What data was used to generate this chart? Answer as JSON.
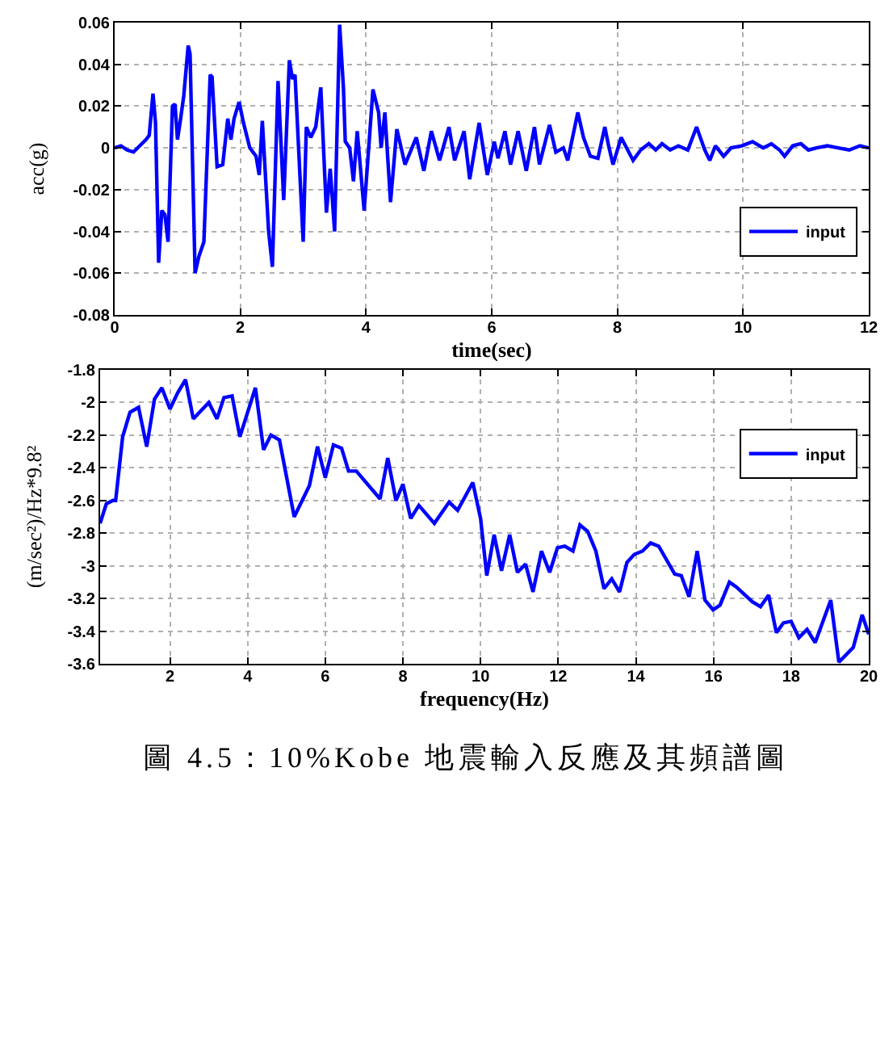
{
  "chart_data": [
    {
      "type": "line",
      "xlabel": "time(sec)",
      "ylabel": "acc(g)",
      "xlim": [
        0,
        12
      ],
      "xticks": [
        0,
        2,
        4,
        6,
        8,
        10,
        12
      ],
      "ylim": [
        -0.08,
        0.06
      ],
      "yticks": [
        -0.08,
        -0.06,
        -0.04,
        -0.02,
        0,
        0.02,
        0.04,
        0.06
      ],
      "grid": true,
      "legend": "bottom right",
      "x": [
        0,
        0.1,
        0.2,
        0.3,
        0.4,
        0.5,
        0.55,
        0.61,
        0.65,
        0.7,
        0.75,
        0.8,
        0.85,
        0.92,
        0.96,
        1.0,
        1.05,
        1.1,
        1.17,
        1.2,
        1.28,
        1.34,
        1.42,
        1.52,
        1.55,
        1.63,
        1.72,
        1.8,
        1.85,
        1.9,
        1.98,
        2.05,
        2.15,
        2.25,
        2.3,
        2.35,
        2.45,
        2.51,
        2.6,
        2.69,
        2.78,
        2.83,
        2.87,
        3.0,
        3.05,
        3.12,
        3.2,
        3.28,
        3.37,
        3.43,
        3.5,
        3.58,
        3.64,
        3.67,
        3.74,
        3.8,
        3.86,
        3.97,
        4.11,
        4.2,
        4.24,
        4.3,
        4.39,
        4.49,
        4.62,
        4.8,
        4.92,
        5.04,
        5.17,
        5.32,
        5.41,
        5.56,
        5.65,
        5.8,
        5.93,
        6.04,
        6.1,
        6.21,
        6.3,
        6.42,
        6.55,
        6.68,
        6.76,
        6.92,
        7.02,
        7.14,
        7.21,
        7.37,
        7.46,
        7.57,
        7.69,
        7.8,
        7.86,
        7.93,
        8.06,
        8.25,
        8.37,
        8.5,
        8.61,
        8.71,
        8.84,
        8.97,
        9.12,
        9.26,
        9.39,
        9.47,
        9.56,
        9.69,
        9.81,
        9.98,
        10.15,
        10.32,
        10.45,
        10.58,
        10.66,
        10.79,
        10.92,
        11.04,
        11.17,
        11.34,
        11.51,
        11.69,
        11.86,
        12.0
      ],
      "series": [
        {
          "name": "input",
          "color": "#0000ff",
          "values": [
            0,
            0.001,
            -0.001,
            -0.002,
            0.001,
            0.004,
            0.006,
            0.026,
            0.012,
            -0.055,
            -0.03,
            -0.032,
            -0.045,
            0.02,
            0.021,
            0.004,
            0.014,
            0.025,
            0.049,
            0.045,
            -0.06,
            -0.052,
            -0.045,
            0.035,
            0.034,
            -0.009,
            -0.008,
            0.014,
            0.004,
            0.014,
            0.022,
            0.012,
            0,
            -0.004,
            -0.013,
            0.013,
            -0.04,
            -0.057,
            0.032,
            -0.025,
            0.042,
            0.033,
            0.035,
            -0.045,
            0.01,
            0.005,
            0.01,
            0.029,
            -0.031,
            -0.01,
            -0.04,
            0.059,
            0.029,
            0.003,
            0,
            -0.016,
            0.008,
            -0.03,
            0.028,
            0.017,
            0,
            0.017,
            -0.026,
            0.009,
            -0.008,
            0.005,
            -0.011,
            0.008,
            -0.006,
            0.01,
            -0.006,
            0.008,
            -0.015,
            0.012,
            -0.013,
            0.003,
            -0.005,
            0.008,
            -0.008,
            0.008,
            -0.011,
            0.01,
            -0.008,
            0.011,
            -0.002,
            0,
            -0.006,
            0.017,
            0.005,
            -0.004,
            -0.005,
            0.01,
            0.001,
            -0.008,
            0.005,
            -0.006,
            -0.001,
            0.002,
            -0.001,
            0.002,
            -0.001,
            0.001,
            -0.001,
            0.01,
            -0.001,
            -0.006,
            0.001,
            -0.004,
            0,
            0.001,
            0.003,
            0,
            0.002,
            -0.001,
            -0.004,
            0.001,
            0.002,
            -0.001,
            0,
            0.001,
            0,
            -0.001,
            0.001,
            0
          ]
        }
      ]
    },
    {
      "type": "line",
      "xlabel": "frequency(Hz)",
      "ylabel": "(m/sec²)/Hz*9.8²",
      "xlim": [
        0.2,
        20
      ],
      "xticks": [
        2,
        4,
        6,
        8,
        10,
        12,
        14,
        16,
        18,
        20
      ],
      "ylim": [
        -3.6,
        -1.8
      ],
      "yticks": [
        -3.6,
        -3.4,
        -3.2,
        -3,
        -2.8,
        -2.6,
        -2.4,
        -2.2,
        -2,
        -1.8
      ],
      "grid": true,
      "legend": "top right",
      "annotations": [
        "圖 4.5：10%Kobe 地震輸入反應及其頻譜圖"
      ],
      "x": [
        0.2,
        0.36,
        0.53,
        0.6,
        0.78,
        0.97,
        1.19,
        1.4,
        1.6,
        1.79,
        2.0,
        2.2,
        2.4,
        2.6,
        3.0,
        3.21,
        3.39,
        3.6,
        3.8,
        4.2,
        4.41,
        4.6,
        4.82,
        5.2,
        5.59,
        5.8,
        6.0,
        6.21,
        6.42,
        6.6,
        6.8,
        7.41,
        7.61,
        7.82,
        8.0,
        8.2,
        8.41,
        8.81,
        9.19,
        9.41,
        9.8,
        10.0,
        10.16,
        10.35,
        10.54,
        10.75,
        10.95,
        11.16,
        11.35,
        11.57,
        11.78,
        11.98,
        12.17,
        12.38,
        12.56,
        12.76,
        12.97,
        13.18,
        13.38,
        13.58,
        13.77,
        13.96,
        14.17,
        14.38,
        14.59,
        15.0,
        15.17,
        15.37,
        15.58,
        15.78,
        15.99,
        16.17,
        16.41,
        16.59,
        17.0,
        17.21,
        17.42,
        17.62,
        17.8,
        18.0,
        18.2,
        18.41,
        18.62,
        19.02,
        19.23,
        19.6,
        19.83,
        20.0
      ],
      "series": [
        {
          "name": "input",
          "color": "#0000ff",
          "values": [
            -2.74,
            -2.62,
            -2.6,
            -2.6,
            -2.21,
            -2.06,
            -2.03,
            -2.27,
            -1.98,
            -1.91,
            -2.04,
            -1.94,
            -1.86,
            -2.1,
            -2.0,
            -2.1,
            -1.97,
            -1.96,
            -2.21,
            -1.91,
            -2.29,
            -2.2,
            -2.23,
            -2.7,
            -2.51,
            -2.27,
            -2.46,
            -2.26,
            -2.28,
            -2.42,
            -2.42,
            -2.59,
            -2.34,
            -2.6,
            -2.5,
            -2.71,
            -2.63,
            -2.74,
            -2.61,
            -2.66,
            -2.49,
            -2.71,
            -3.06,
            -2.81,
            -3.03,
            -2.81,
            -3.04,
            -2.99,
            -3.16,
            -2.91,
            -3.04,
            -2.89,
            -2.88,
            -2.91,
            -2.75,
            -2.79,
            -2.91,
            -3.14,
            -3.08,
            -3.16,
            -2.98,
            -2.93,
            -2.91,
            -2.86,
            -2.88,
            -3.05,
            -3.06,
            -3.19,
            -2.91,
            -3.21,
            -3.27,
            -3.24,
            -3.1,
            -3.13,
            -3.22,
            -3.25,
            -3.18,
            -3.41,
            -3.35,
            -3.34,
            -3.44,
            -3.39,
            -3.47,
            -3.21,
            -3.59,
            -3.5,
            -3.3,
            -3.42
          ]
        }
      ]
    }
  ]
}
